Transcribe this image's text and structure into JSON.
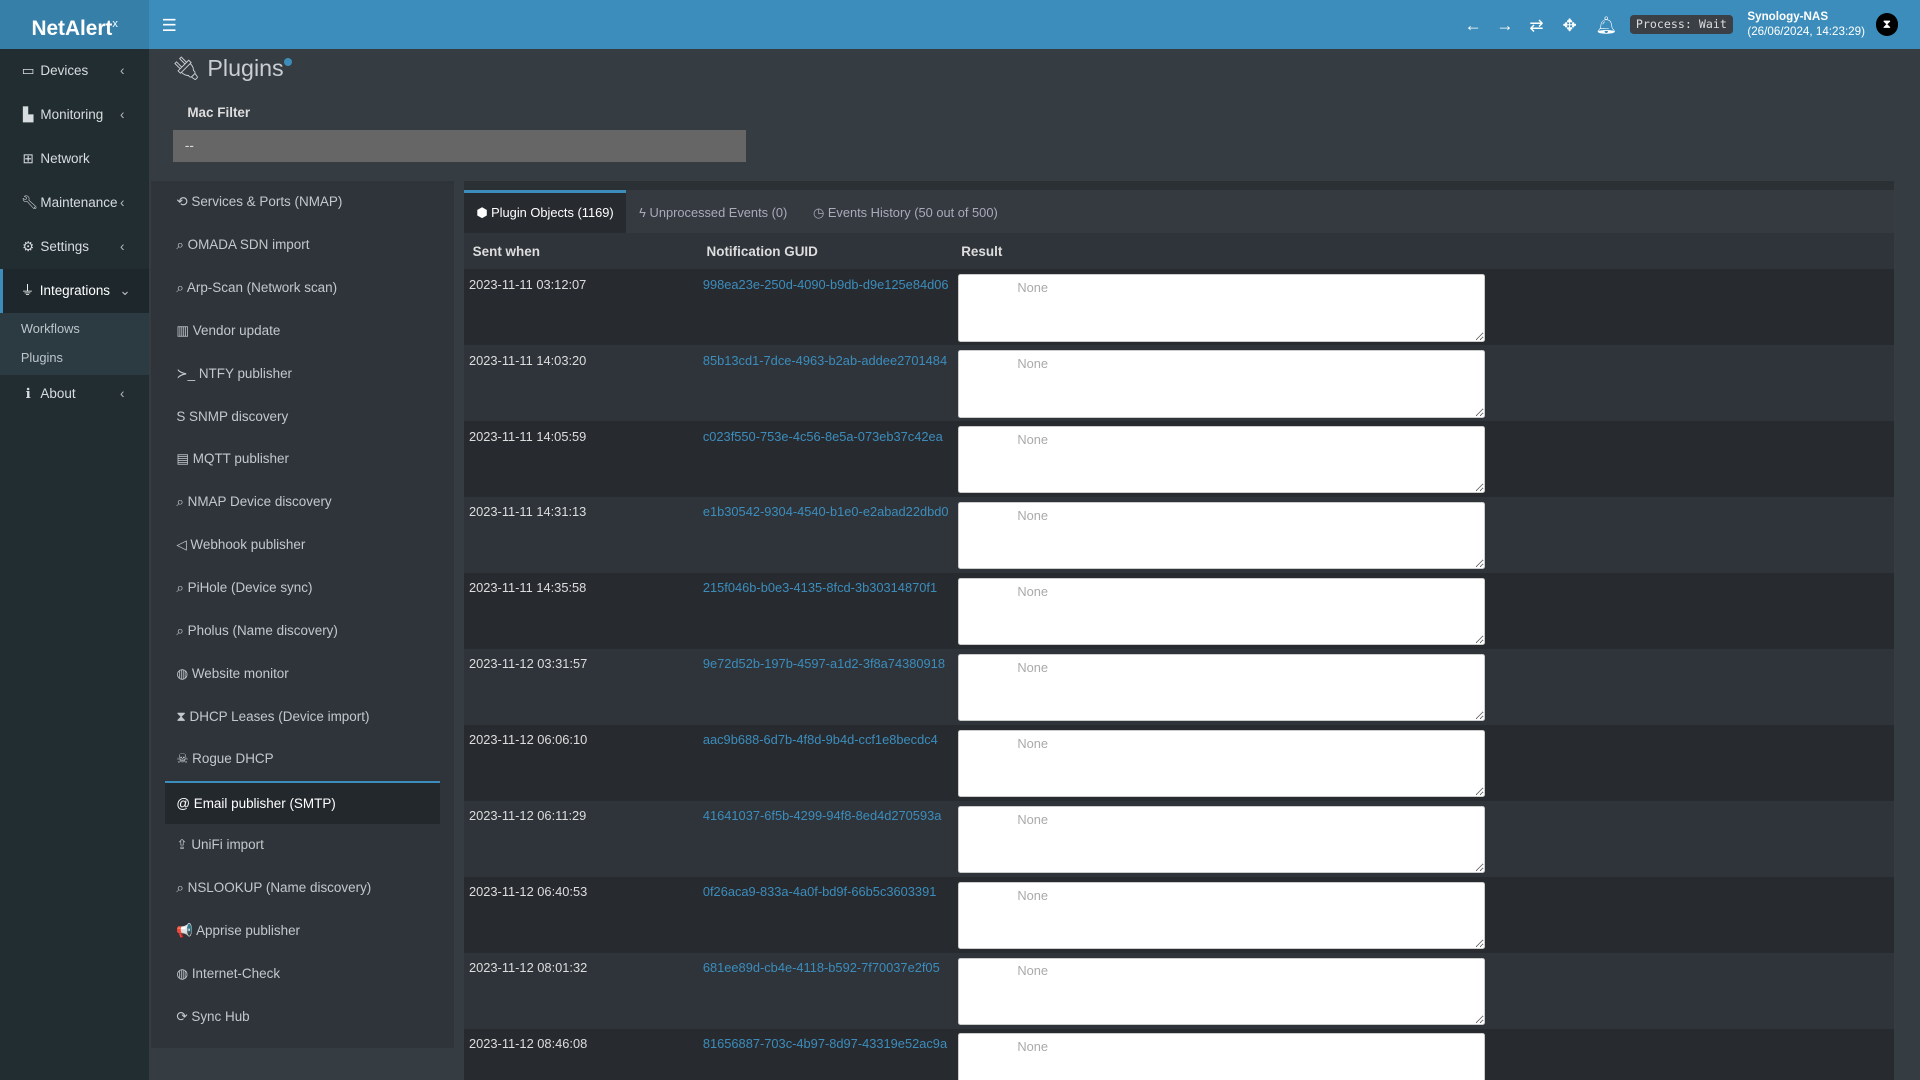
{
  "app": {
    "logo": "NetAlert",
    "logo_sup": "x",
    "title": "Plugins",
    "help_icon": "question-icon"
  },
  "topbar": {
    "process": "Process: Wait",
    "host": "Synology-NAS",
    "time": "(26/06/2024, 14:23:29)"
  },
  "sidebar": {
    "items": [
      {
        "label": "Devices",
        "icon": "laptop-icon"
      },
      {
        "label": "Monitoring",
        "icon": "chart-icon"
      },
      {
        "label": "Network",
        "icon": "sitemap-icon"
      },
      {
        "label": "Maintenance",
        "icon": "wrench-icon"
      },
      {
        "label": "Settings",
        "icon": "gear-icon"
      },
      {
        "label": "Integrations",
        "icon": "plug-icon"
      },
      {
        "label": "About",
        "icon": "info-icon"
      }
    ],
    "submenu": [
      "Workflows",
      "Plugins"
    ]
  },
  "filter": {
    "label": "Mac Filter",
    "value": "--"
  },
  "plugins": [
    "Services & Ports (NMAP)",
    "OMADA SDN import",
    "Arp-Scan (Network scan)",
    "Vendor update",
    "NTFY publisher",
    "SNMP discovery",
    "MQTT publisher",
    "NMAP Device discovery",
    "Webhook publisher",
    "PiHole (Device sync)",
    "Pholus (Name discovery)",
    "Website monitor",
    "DHCP Leases (Device import)",
    "Rogue DHCP",
    "Email publisher (SMTP)",
    "UniFi import",
    "NSLOOKUP (Name discovery)",
    "Apprise publisher",
    "Internet-Check",
    "Sync Hub"
  ],
  "plugin_icons": [
    "⟲",
    "⌕",
    "⌕",
    "▥",
    "≻_",
    "S",
    "▤",
    "⌕",
    "◁",
    "⌕",
    "⌕",
    "◍",
    "⧗",
    "☠",
    "@",
    "⇪",
    "⌕",
    "📢",
    "◍",
    "⟳"
  ],
  "selected_plugin": "Email publisher (SMTP)",
  "tabs": [
    "Plugin Objects (1169)",
    "Unprocessed Events (0)",
    "Events History (50 out of 500)"
  ],
  "table": {
    "headers": [
      "Sent when",
      "Notification GUID",
      "Result"
    ],
    "rows": [
      [
        "2023-11-11 03:12:07",
        "998ea23e-250d-4090-b9db-d9e125e84d06",
        "None"
      ],
      [
        "2023-11-11 14:03:20",
        "85b13cd1-7dce-4963-b2ab-addee2701484",
        "None"
      ],
      [
        "2023-11-11 14:05:59",
        "c023f550-753e-4c56-8e5a-073eb37c42ea",
        "None"
      ],
      [
        "2023-11-11 14:31:13",
        "e1b30542-9304-4540-b1e0-e2abad22dbd0",
        "None"
      ],
      [
        "2023-11-11 14:35:58",
        "215f046b-b0e3-4135-8fcd-3b30314870f1",
        "None"
      ],
      [
        "2023-11-12 03:31:57",
        "9e72d52b-197b-4597-a1d2-3f8a74380918",
        "None"
      ],
      [
        "2023-11-12 06:06:10",
        "aac9b688-6d7b-4f8d-9b4d-ccf1e8becdc4",
        "None"
      ],
      [
        "2023-11-12 06:11:29",
        "41641037-6f5b-4299-94f8-8ed4d270593a",
        "None"
      ],
      [
        "2023-11-12 06:40:53",
        "0f26aca9-833a-4a0f-bd9f-66b5c3603391",
        "None"
      ],
      [
        "2023-11-12 08:01:32",
        "681ee89d-cb4e-4118-b592-7f70037e2f05",
        "None"
      ],
      [
        "2023-11-12 08:46:08",
        "81656887-703c-4b97-8d97-43319e52ac9a",
        "None"
      ]
    ]
  },
  "colors": {
    "accent": "#3c8dbc",
    "sidebar": "#222d32",
    "content": "#353c42"
  }
}
